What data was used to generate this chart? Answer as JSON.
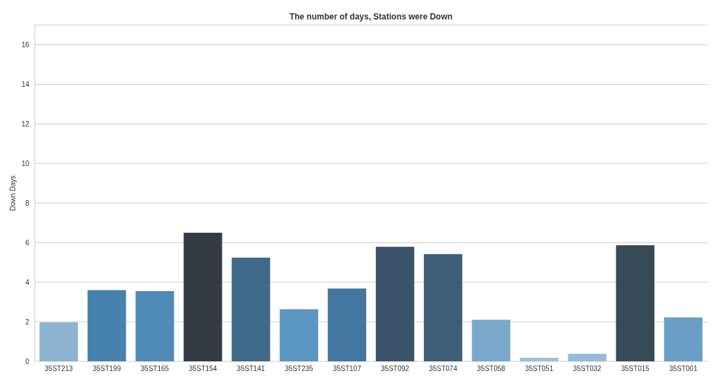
{
  "chart_data": {
    "type": "bar",
    "title": "The number of days, Stations were Down",
    "ylabel": "Down Days",
    "categories": [
      "35ST213",
      "35ST199",
      "35ST165",
      "35ST154",
      "35ST141",
      "35ST235",
      "35ST107",
      "35ST092",
      "35ST074",
      "35ST058",
      "35ST051",
      "35ST032",
      "35ST015",
      "35ST001"
    ],
    "values": [
      1.97,
      3.6,
      3.55,
      6.5,
      5.24,
      2.63,
      3.68,
      5.79,
      5.42,
      2.1,
      0.18,
      0.38,
      5.87,
      2.22
    ],
    "colors": [
      "#8cb3d0",
      "#4782ae",
      "#4f8ab7",
      "#353b45",
      "#41698a",
      "#5b96c0",
      "#4477a0",
      "#3b546b",
      "#3e5e78",
      "#7aa8cb",
      "#9ec0dc",
      "#95bbd8",
      "#374a57",
      "#6a9fc5"
    ],
    "ylim": [
      0,
      17
    ],
    "yticks": [
      0,
      2,
      4,
      6,
      8,
      10,
      12,
      14,
      16
    ],
    "grid": "y"
  }
}
